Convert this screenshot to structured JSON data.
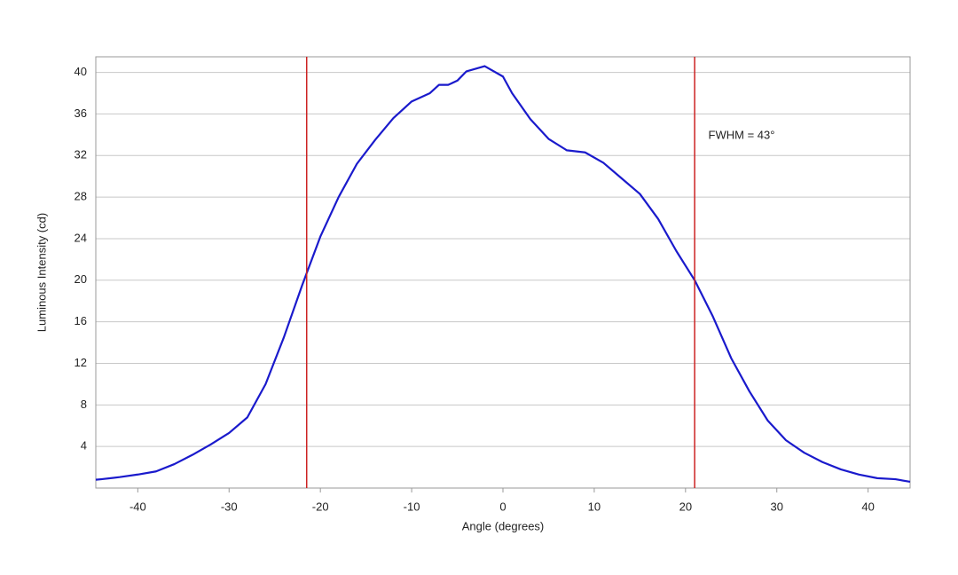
{
  "chart_data": {
    "type": "line",
    "x_label": "Angle (degrees)",
    "y_label": "Luminous Intensity (cd)",
    "x": [
      -44.6,
      -44,
      -42,
      -40,
      -38,
      -36,
      -34,
      -32,
      -30,
      -28,
      -26,
      -24,
      -22,
      -20,
      -18,
      -16,
      -14,
      -12,
      -10,
      -8,
      -7,
      -6,
      -5,
      -4,
      -2,
      0,
      1,
      3,
      5,
      7,
      9,
      11,
      13,
      15,
      17,
      19,
      21,
      23,
      25,
      27,
      29,
      31,
      33,
      35,
      37,
      39,
      41,
      43,
      44.6
    ],
    "values": [
      0.8,
      0.85,
      1.05,
      1.3,
      1.6,
      2.3,
      3.2,
      4.2,
      5.3,
      6.8,
      10,
      14.5,
      19.5,
      24.2,
      28,
      31.2,
      33.5,
      35.6,
      37.2,
      38,
      38.8,
      38.8,
      39.2,
      40.1,
      40.6,
      39.6,
      38,
      35.5,
      33.6,
      32.5,
      32.3,
      31.3,
      29.8,
      28.3,
      25.9,
      22.8,
      20,
      16.5,
      12.5,
      9.3,
      6.5,
      4.6,
      3.4,
      2.5,
      1.8,
      1.3,
      0.95,
      0.85,
      0.6
    ],
    "color": "#1a1acc",
    "vlines": [
      -21.5,
      21
    ],
    "vline_color": "#cc2222",
    "annotations": [
      {
        "text": "FWHM = 43°",
        "x": 22.5,
        "y": 33.9
      }
    ],
    "xlim": [
      -44.6,
      44.6
    ],
    "ylim": [
      0,
      41.5
    ],
    "xticks": [
      -40,
      -30,
      -20,
      -10,
      0,
      10,
      20,
      30,
      40
    ],
    "yticks": [
      4,
      8,
      12,
      16,
      20,
      24,
      28,
      32,
      36,
      40
    ],
    "grid": true
  }
}
